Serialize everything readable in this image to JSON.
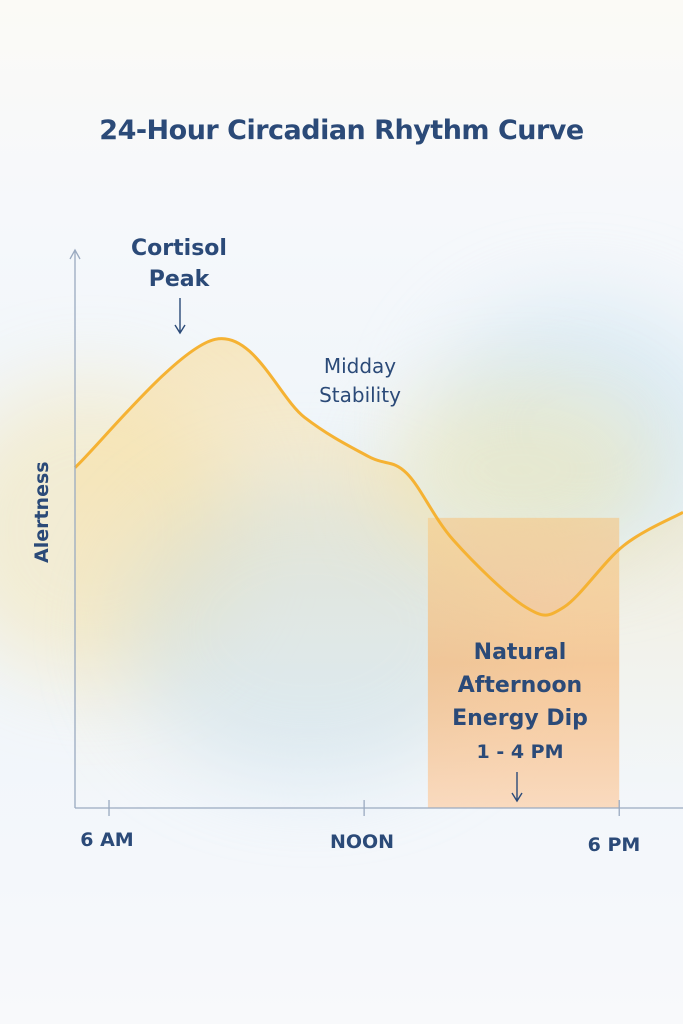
{
  "chart_data": {
    "type": "line",
    "title": "24-Hour Circadian Rhythm Curve",
    "xlabel": "",
    "ylabel": "Alertness",
    "x_unit": "hour of day",
    "xlim": [
      5.2,
      19.5
    ],
    "ylim": [
      0,
      100
    ],
    "x_ticks": [
      {
        "value": 6,
        "label": "6 AM"
      },
      {
        "value": 12,
        "label": "NOON"
      },
      {
        "value": 18,
        "label": "6 PM"
      }
    ],
    "grid": false,
    "series": [
      {
        "x": [
          5.2,
          8.5,
          10.6,
          12.1,
          13.0,
          14.1,
          15.8,
          16.7,
          18.1,
          19.5
        ],
        "y": [
          61,
          84,
          70,
          63,
          60,
          48,
          36,
          36,
          47,
          53
        ],
        "color": "#f5b233"
      }
    ],
    "shaded_region": {
      "x": [
        13.5,
        18
      ],
      "color": "#f7b36b"
    },
    "annotations": {
      "cortisol": "Cortisol\nPeak",
      "midday": "Midday\nStability",
      "dip": "Natural\nAfternoon\nEnergy Dip",
      "dip_time": "1 - 4 PM"
    }
  }
}
